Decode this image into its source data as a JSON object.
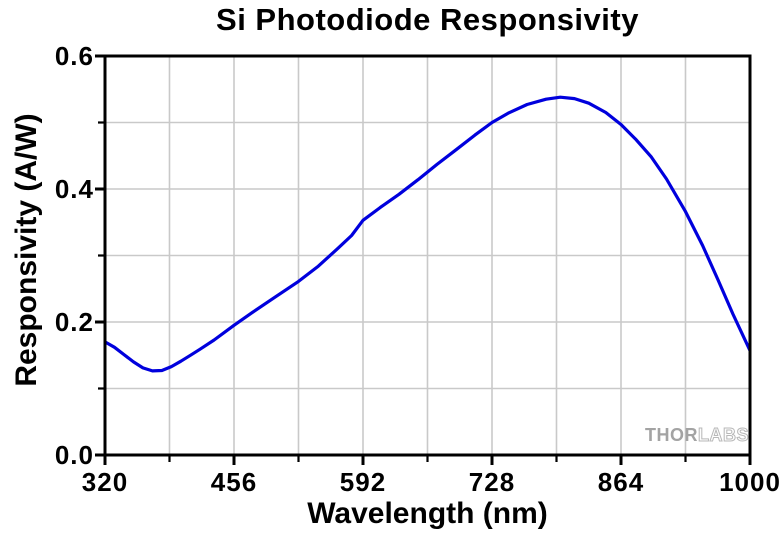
{
  "chart_data": {
    "type": "line",
    "title": "Si Photodiode Responsivity",
    "xlabel": "Wavelength (nm)",
    "ylabel": "Responsivity (A/W)",
    "xlim": [
      320,
      1000
    ],
    "ylim": [
      0.0,
      0.6
    ],
    "x_major_ticks": [
      320,
      456,
      592,
      728,
      864,
      1000
    ],
    "x_minor_ticks": [
      388,
      524,
      660,
      796,
      932
    ],
    "y_major_ticks": [
      0.0,
      0.2,
      0.4,
      0.6
    ],
    "y_major_tick_labels": [
      "0.0",
      "0.2",
      "0.4",
      "0.6"
    ],
    "y_minor_ticks": [
      0.1,
      0.3,
      0.5
    ],
    "grid": {
      "show": true,
      "color": "#c9c9c9",
      "x_lines": [
        388,
        456,
        524,
        592,
        660,
        728,
        796,
        864,
        932
      ],
      "y_lines": [
        0.1,
        0.2,
        0.3,
        0.4,
        0.5
      ]
    },
    "axis_color": "#000000",
    "background_color": "#ffffff",
    "legend": "none",
    "series": [
      {
        "color": "#0000dd",
        "x": [
          320,
          330,
          340,
          350,
          360,
          370,
          380,
          390,
          400,
          410,
          420,
          435,
          456,
          475,
          500,
          524,
          545,
          565,
          580,
          592,
          610,
          630,
          650,
          670,
          690,
          710,
          728,
          745,
          765,
          785,
          800,
          815,
          830,
          848,
          864,
          880,
          896,
          912,
          932,
          950,
          966,
          982,
          1000
        ],
        "y": [
          0.17,
          0.162,
          0.151,
          0.14,
          0.131,
          0.1265,
          0.127,
          0.133,
          0.141,
          0.15,
          0.159,
          0.173,
          0.195,
          0.214,
          0.238,
          0.261,
          0.284,
          0.31,
          0.33,
          0.353,
          0.372,
          0.392,
          0.414,
          0.437,
          0.459,
          0.481,
          0.5,
          0.514,
          0.527,
          0.535,
          0.538,
          0.536,
          0.529,
          0.515,
          0.497,
          0.474,
          0.448,
          0.415,
          0.366,
          0.315,
          0.264,
          0.212,
          0.157
        ]
      }
    ],
    "annotations": {
      "peak_responsivity_aw": 0.538,
      "peak_wavelength_nm": 800,
      "min_responsivity_aw": 0.126,
      "min_wavelength_nm": 372
    },
    "watermark": {
      "part1": "THOR",
      "part2": "LABS"
    }
  }
}
